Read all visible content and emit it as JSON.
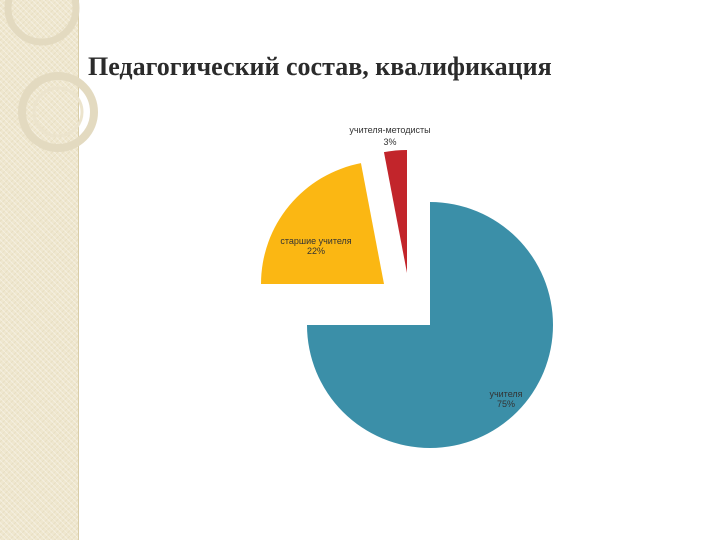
{
  "slide": {
    "title": "Педагогический состав, квалификация"
  },
  "chart_data": {
    "type": "pie",
    "exploded": true,
    "slices": [
      {
        "label": "учителя",
        "percent_label": "75%",
        "value": 75,
        "color": "#3b8fa8"
      },
      {
        "label": "старшие учителя",
        "percent_label": "22%",
        "value": 22,
        "color": "#fbb713"
      },
      {
        "label": "учителя-методисты",
        "percent_label": "3%",
        "value": 3,
        "color": "#c2252b"
      }
    ]
  }
}
